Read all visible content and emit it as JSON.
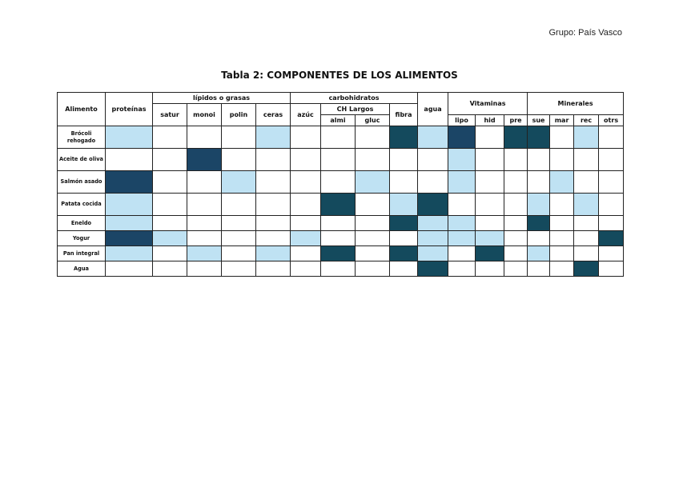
{
  "header": {
    "group": "Grupo: País Vasco",
    "title": "Tabla 2: COMPONENTES DE LOS ALIMENTOS"
  },
  "table": {
    "headers": {
      "alimento": "Alimento",
      "proteinas": "proteínas",
      "lipidos": "lípidos o grasas",
      "satur": "satur",
      "monoi": "monoi",
      "polin": "polin",
      "ceras": "ceras",
      "carbohidratos": "carbohidratos",
      "azuc": "azúc",
      "ch_largos": "CH Largos",
      "almi": "almi",
      "gluc": "gluc",
      "fibra": "fibra",
      "agua": "agua",
      "vitaminas": "Vitaminas",
      "lipo": "lipo",
      "hid": "hid",
      "pre": "pre",
      "minerales": "Minerales",
      "sue": "sue",
      "mar": "mar",
      "rec": "rec",
      "otrs": "otrs"
    },
    "rows": [
      {
        "label": "Brócoli rehogado",
        "cells": [
          "l",
          "n",
          "n",
          "n",
          "l",
          "n",
          "n",
          "n",
          "t",
          "l",
          "d",
          "n",
          "t",
          "t",
          "n",
          "l",
          "n"
        ]
      },
      {
        "label": "Aceite de oliva",
        "cells": [
          "n",
          "n",
          "d",
          "n",
          "n",
          "n",
          "n",
          "n",
          "n",
          "n",
          "l",
          "n",
          "n",
          "n",
          "n",
          "n",
          "n"
        ]
      },
      {
        "label": "Salmón asado",
        "cells": [
          "d",
          "n",
          "n",
          "l",
          "n",
          "n",
          "n",
          "l",
          "n",
          "n",
          "l",
          "n",
          "n",
          "n",
          "l",
          "n",
          "n"
        ]
      },
      {
        "label": "Patata cocida",
        "cells": [
          "l",
          "n",
          "n",
          "n",
          "n",
          "n",
          "t",
          "n",
          "l",
          "t",
          "n",
          "n",
          "n",
          "l",
          "n",
          "l",
          "n"
        ]
      },
      {
        "label": "Eneldo",
        "cells": [
          "l",
          "n",
          "n",
          "n",
          "n",
          "n",
          "n",
          "n",
          "t",
          "l",
          "l",
          "n",
          "n",
          "t",
          "n",
          "n",
          "n"
        ]
      },
      {
        "label": "Yogur",
        "cells": [
          "d",
          "l",
          "n",
          "n",
          "n",
          "l",
          "n",
          "n",
          "n",
          "l",
          "l",
          "l",
          "n",
          "n",
          "n",
          "n",
          "t"
        ]
      },
      {
        "label": "Pan integral",
        "cells": [
          "l",
          "n",
          "l",
          "n",
          "l",
          "n",
          "t",
          "n",
          "t",
          "l",
          "n",
          "t",
          "n",
          "l",
          "n",
          "n",
          "n"
        ]
      },
      {
        "label": "Agua",
        "cells": [
          "n",
          "n",
          "n",
          "n",
          "n",
          "n",
          "n",
          "n",
          "n",
          "t",
          "n",
          "n",
          "n",
          "n",
          "n",
          "t",
          "n"
        ]
      }
    ]
  }
}
